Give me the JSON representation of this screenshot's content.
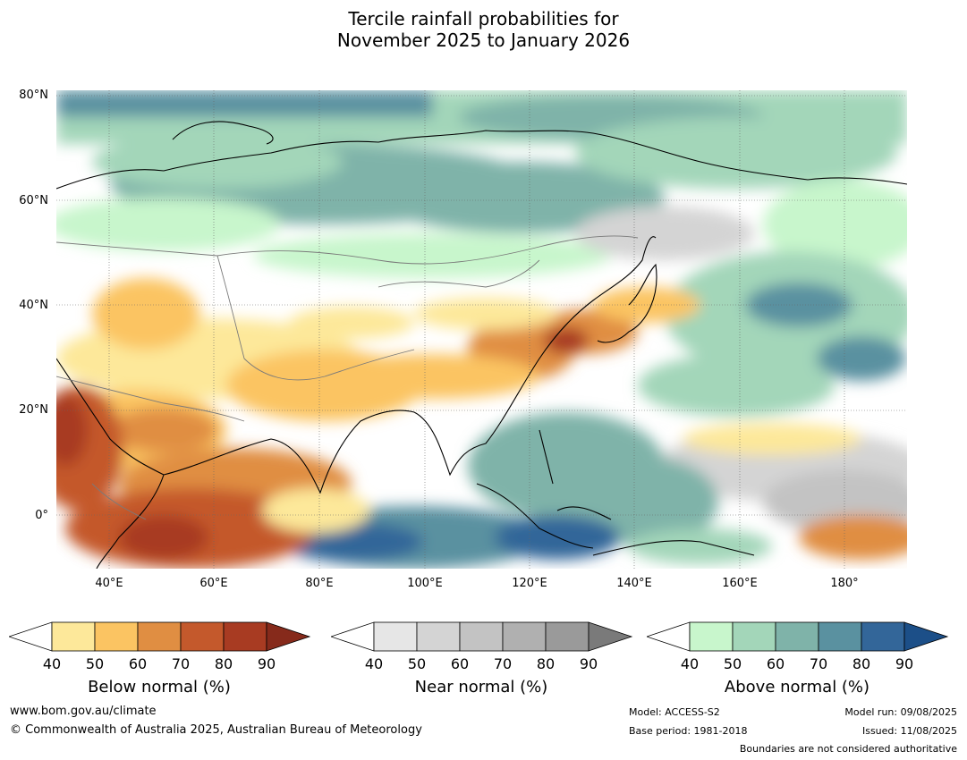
{
  "title_line1": "Tercile rainfall probabilities for",
  "title_line2": "November 2025 to January 2026",
  "lat_labels": [
    "80°N",
    "60°N",
    "40°N",
    "20°N",
    "0°"
  ],
  "lon_labels": [
    "40°E",
    "60°E",
    "80°E",
    "100°E",
    "120°E",
    "140°E",
    "160°E",
    "180°"
  ],
  "colorbars": {
    "below": {
      "title": "Below normal (%)",
      "ticks": [
        "40",
        "50",
        "60",
        "70",
        "80",
        "90"
      ],
      "colors": [
        "#ffffff",
        "#fde89a",
        "#fbc462",
        "#e08e42",
        "#c4592c",
        "#a83b22",
        "#862a1b"
      ]
    },
    "near": {
      "title": "Near normal (%)",
      "ticks": [
        "40",
        "50",
        "60",
        "70",
        "80",
        "90"
      ],
      "colors": [
        "#ffffff",
        "#e6e6e6",
        "#d4d4d4",
        "#c3c3c3",
        "#b0b0b0",
        "#9a9a9a",
        "#7a7a7a"
      ]
    },
    "above": {
      "title": "Above normal (%)",
      "ticks": [
        "40",
        "50",
        "60",
        "70",
        "80",
        "90"
      ],
      "colors": [
        "#ffffff",
        "#c8f6cc",
        "#a3d6b9",
        "#7fb3a9",
        "#5a91a0",
        "#336699",
        "#1c4f88"
      ]
    }
  },
  "footer": {
    "website": "www.bom.gov.au/climate",
    "copyright": "© Commonwealth of Australia 2025, Australian Bureau of Meteorology",
    "model": "Model: ACCESS-S2",
    "base_period": "Base period: 1981-2018",
    "model_run": "Model run: 09/08/2025",
    "issued": "Issued: 11/08/2025",
    "boundaries": "Boundaries are not considered authoritative"
  }
}
